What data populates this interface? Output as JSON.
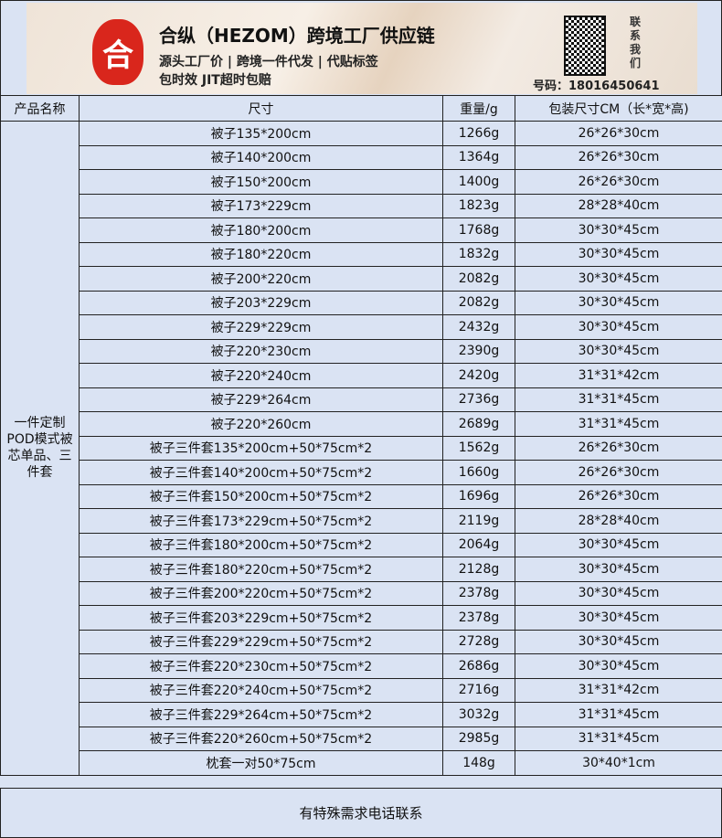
{
  "banner": {
    "logo_char": "合",
    "title": "合纵（HEZOM）跨境工厂供应链",
    "tagline1": "源头工厂价 | 跨境一件代发 | 代贴标签",
    "tagline2": "包时效 JIT超时包赔",
    "contact_label": "联系我们",
    "phone": "号码：18016450641"
  },
  "table": {
    "headers": [
      "产品名称",
      "尺寸",
      "重量/g",
      "包装尺寸CM（长*宽*高)"
    ],
    "product_name": "一件定制POD模式被芯单品、三件套",
    "rows": [
      [
        "被子135*200cm",
        "1266g",
        "26*26*30cm"
      ],
      [
        "被子140*200cm",
        "1364g",
        "26*26*30cm"
      ],
      [
        "被子150*200cm",
        "1400g",
        "26*26*30cm"
      ],
      [
        "被子173*229cm",
        "1823g",
        "28*28*40cm"
      ],
      [
        "被子180*200cm",
        "1768g",
        "30*30*45cm"
      ],
      [
        "被子180*220cm",
        "1832g",
        "30*30*45cm"
      ],
      [
        "被子200*220cm",
        "2082g",
        "30*30*45cm"
      ],
      [
        "被子203*229cm",
        "2082g",
        "30*30*45cm"
      ],
      [
        "被子229*229cm",
        "2432g",
        "30*30*45cm"
      ],
      [
        "被子220*230cm",
        "2390g",
        "30*30*45cm"
      ],
      [
        "被子220*240cm",
        "2420g",
        "31*31*42cm"
      ],
      [
        "被子229*264cm",
        "2736g",
        "31*31*45cm"
      ],
      [
        "被子220*260cm",
        "2689g",
        "31*31*45cm"
      ],
      [
        "被子三件套135*200cm+50*75cm*2",
        "1562g",
        "26*26*30cm"
      ],
      [
        "被子三件套140*200cm+50*75cm*2",
        "1660g",
        "26*26*30cm"
      ],
      [
        "被子三件套150*200cm+50*75cm*2",
        "1696g",
        "26*26*30cm"
      ],
      [
        "被子三件套173*229cm+50*75cm*2",
        "2119g",
        "28*28*40cm"
      ],
      [
        "被子三件套180*200cm+50*75cm*2",
        "2064g",
        "30*30*45cm"
      ],
      [
        "被子三件套180*220cm+50*75cm*2",
        "2128g",
        "30*30*45cm"
      ],
      [
        "被子三件套200*220cm+50*75cm*2",
        "2378g",
        "30*30*45cm"
      ],
      [
        "被子三件套203*229cm+50*75cm*2",
        "2378g",
        "30*30*45cm"
      ],
      [
        "被子三件套229*229cm+50*75cm*2",
        "2728g",
        "30*30*45cm"
      ],
      [
        "被子三件套220*230cm+50*75cm*2",
        "2686g",
        "30*30*45cm"
      ],
      [
        "被子三件套220*240cm+50*75cm*2",
        "2716g",
        "31*31*42cm"
      ],
      [
        "被子三件套229*264cm+50*75cm*2",
        "3032g",
        "31*31*45cm"
      ],
      [
        "被子三件套220*260cm+50*75cm*2",
        "2985g",
        "31*31*45cm"
      ],
      [
        "枕套一对50*75cm",
        "148g",
        "30*40*1cm"
      ]
    ]
  },
  "footer": {
    "text": "有特殊需求电话联系"
  },
  "colors": {
    "background": "#dae3f3",
    "logo": "#d9261c"
  }
}
